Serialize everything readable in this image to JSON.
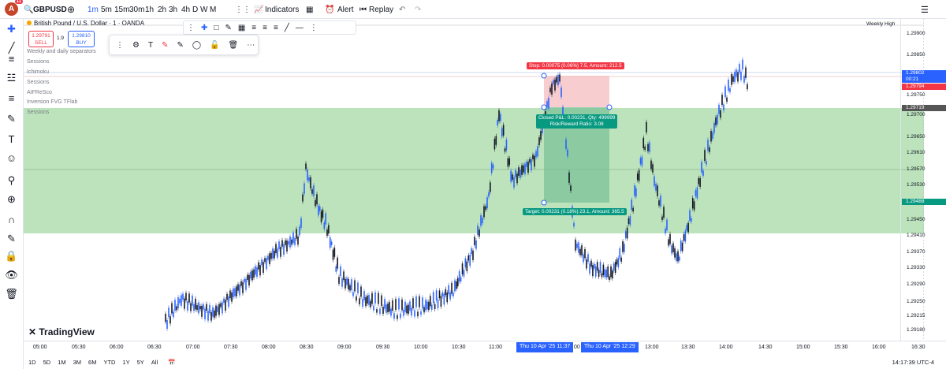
{
  "topbar": {
    "avatar_letter": "A",
    "notif_count": "11",
    "symbol": "GBPUSD",
    "add_icon": "+",
    "intervals": [
      "1m",
      "5m",
      "15m",
      "30m",
      "1h",
      "2h",
      "3h",
      "4h",
      "D",
      "W",
      "M"
    ],
    "indicators_label": "Indicators",
    "alert_label": "Alert",
    "replay_label": "Replay"
  },
  "legend": {
    "title": "British Pound / U.S. Dollar · 1 · OANDA",
    "sell_price": "1.29791",
    "sell_label": "SELL",
    "spread": "1.9",
    "buy_price": "1.29810",
    "buy_label": "BUY",
    "indicators": [
      "Weekly and daily separators",
      "Sessions",
      "Ichimoku",
      "Sessions",
      "AIFReSco",
      "Inversion FVG TFlab",
      "Sessions"
    ]
  },
  "position": {
    "stop_text": "Stop: 0.00075 (0.06%) 7.5, Amount: 212.5",
    "closed_text": "Closed P&L: 0.00231, Qty: 499999",
    "rr_text": "Risk/Reward Ratio: 3.08",
    "target_text": "Target: 0.00231 (0.18%) 23.1, Amount: 365.5"
  },
  "pricescale": {
    "weekly_high": "Weekly High",
    "ticks": [
      "1.29900",
      "1.29850",
      "1.29750",
      "1.29700",
      "1.29650",
      "1.29610",
      "1.29570",
      "1.29530",
      "1.29450",
      "1.29410",
      "1.29370",
      "1.29330",
      "1.29290",
      "1.29250",
      "1.29215",
      "1.29180"
    ],
    "current_price": "1.29802",
    "countdown": "00:21",
    "bid": "1.29794",
    "level_1": "1.29719",
    "level_2": "1.29488"
  },
  "timeaxis": {
    "labels": [
      "05:00",
      "05:30",
      "06:00",
      "06:30",
      "07:00",
      "07:30",
      "08:00",
      "08:30",
      "09:00",
      "09:30",
      "10:00",
      "10:30",
      "11:00",
      "11:30",
      "13:00",
      "13:30",
      "14:00",
      "14:30",
      "15:00",
      "15:30",
      "16:00",
      "16:30"
    ],
    "highlight_1": "Thu 10 Apr '25   11:37",
    "highlight_mid": "00",
    "highlight_2": "Thu 10 Apr '25   12:29"
  },
  "bottombar": {
    "ranges": [
      "1D",
      "5D",
      "1M",
      "3M",
      "6M",
      "YTD",
      "1Y",
      "5Y",
      "All"
    ],
    "clock": "14:17:39 UTC-4"
  },
  "brand": "TradingView",
  "colors": {
    "up": "#2962ff",
    "down": "#131722",
    "zone_green": "#8fd18f",
    "stop_red": "#f23645",
    "target_green": "#089981"
  }
}
